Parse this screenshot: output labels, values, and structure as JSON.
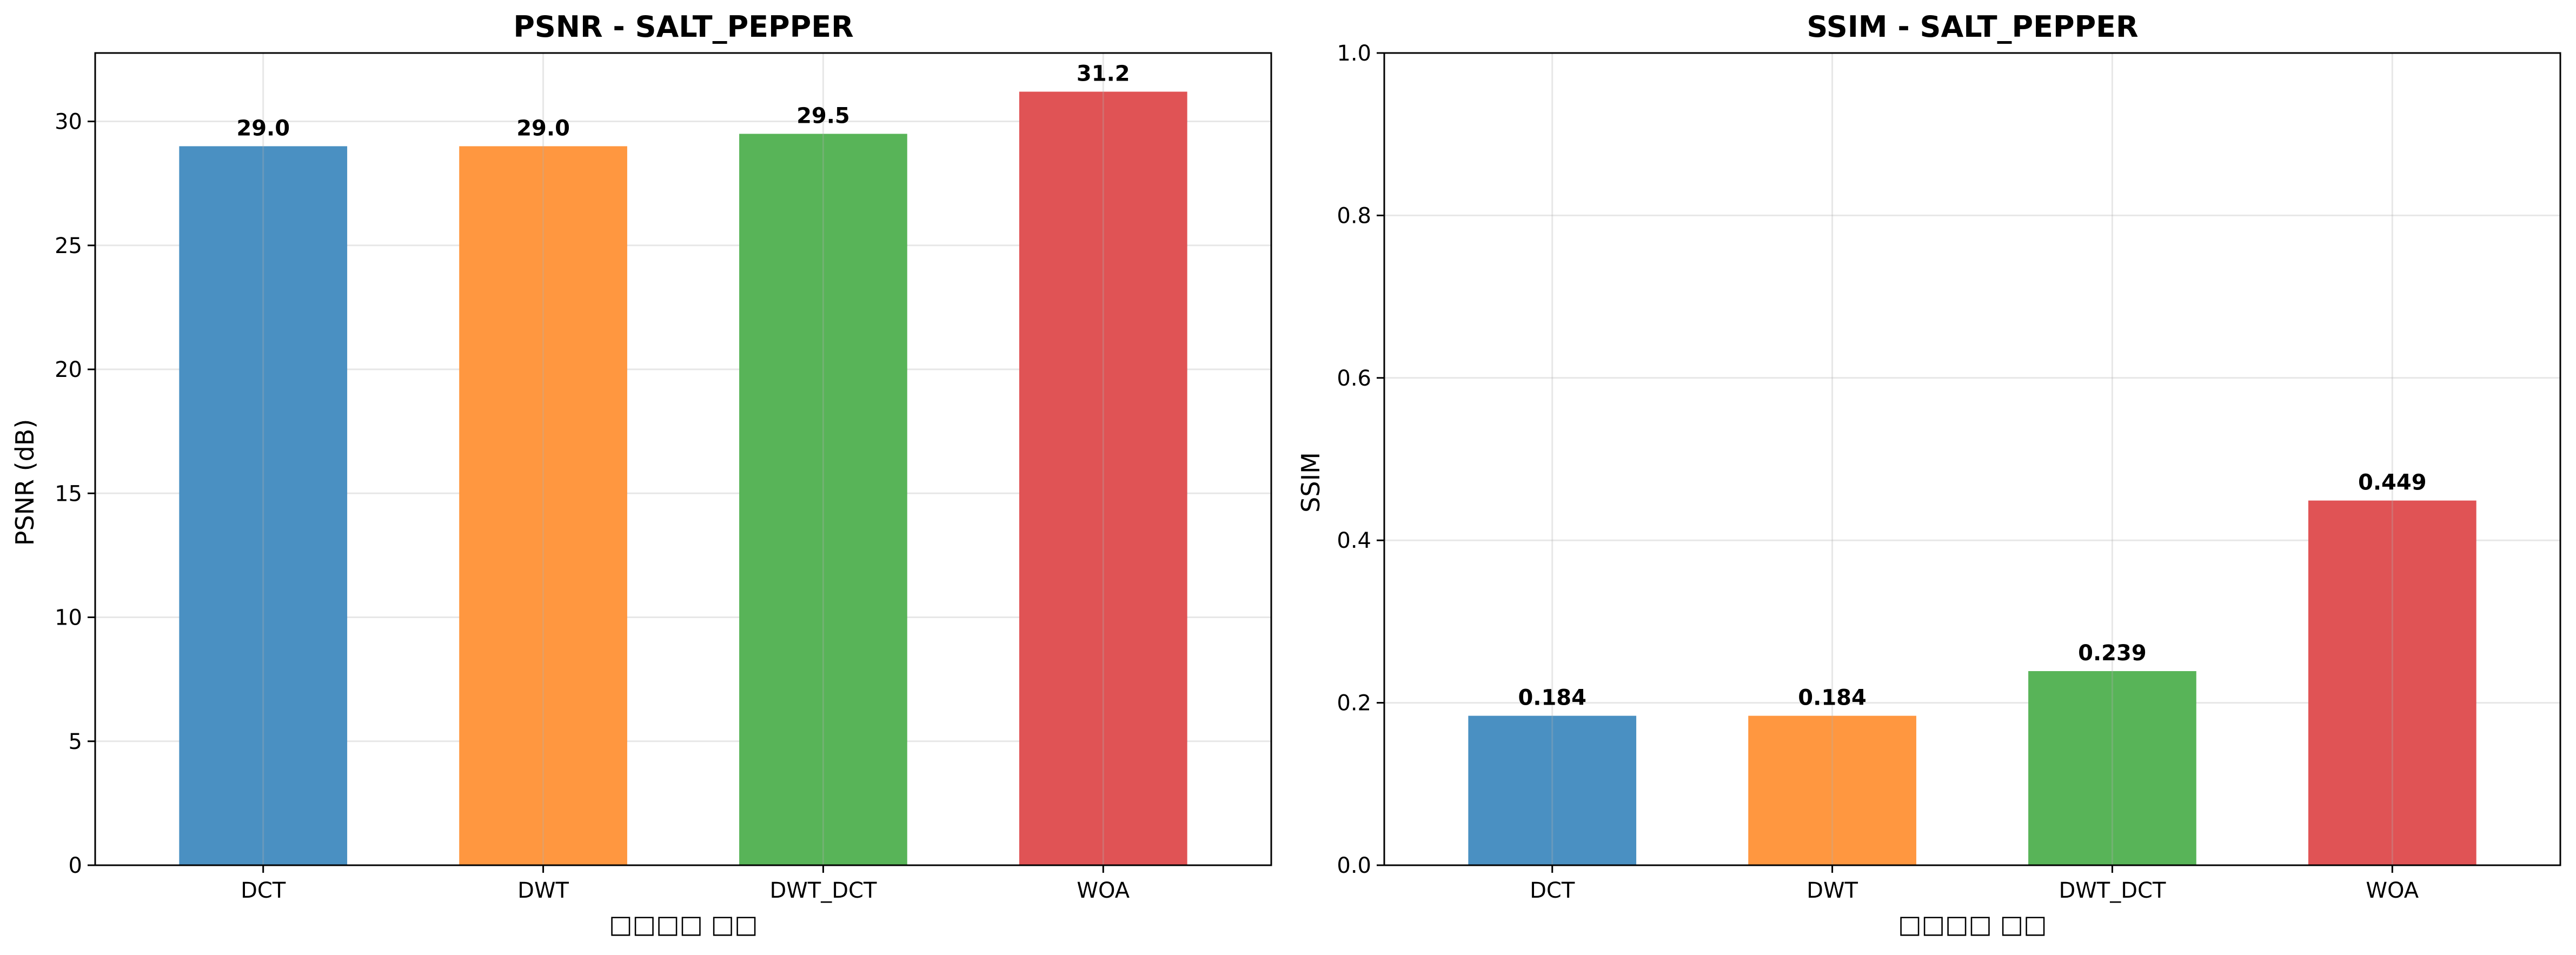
{
  "chart_data": [
    {
      "type": "bar",
      "title": "PSNR - SALT_PEPPER",
      "xlabel": "□□□□ □□",
      "ylabel": "PSNR (dB)",
      "categories": [
        "DCT",
        "DWT",
        "DWT_DCT",
        "WOA"
      ],
      "values": [
        29.0,
        29.0,
        29.5,
        31.2
      ],
      "value_labels": [
        "29.0",
        "29.0",
        "29.5",
        "31.2"
      ],
      "colors": [
        "#4a90c2",
        "#ff9740",
        "#58b458",
        "#e05355"
      ],
      "ylim": [
        0,
        32.76
      ],
      "yticks": [
        0,
        5,
        10,
        15,
        20,
        25,
        30
      ],
      "ytick_labels": [
        "0",
        "5",
        "10",
        "15",
        "20",
        "25",
        "30"
      ],
      "grid": true,
      "legend": "none"
    },
    {
      "type": "bar",
      "title": "SSIM - SALT_PEPPER",
      "xlabel": "□□□□ □□",
      "ylabel": "SSIM",
      "categories": [
        "DCT",
        "DWT",
        "DWT_DCT",
        "WOA"
      ],
      "values": [
        0.184,
        0.184,
        0.239,
        0.449
      ],
      "value_labels": [
        "0.184",
        "0.184",
        "0.239",
        "0.449"
      ],
      "colors": [
        "#4a90c2",
        "#ff9740",
        "#58b458",
        "#e05355"
      ],
      "ylim": [
        0,
        1.0
      ],
      "yticks": [
        0.0,
        0.2,
        0.4,
        0.6,
        0.8,
        1.0
      ],
      "ytick_labels": [
        "0.0",
        "0.2",
        "0.4",
        "0.6",
        "0.8",
        "1.0"
      ],
      "grid": true,
      "legend": "none"
    }
  ]
}
